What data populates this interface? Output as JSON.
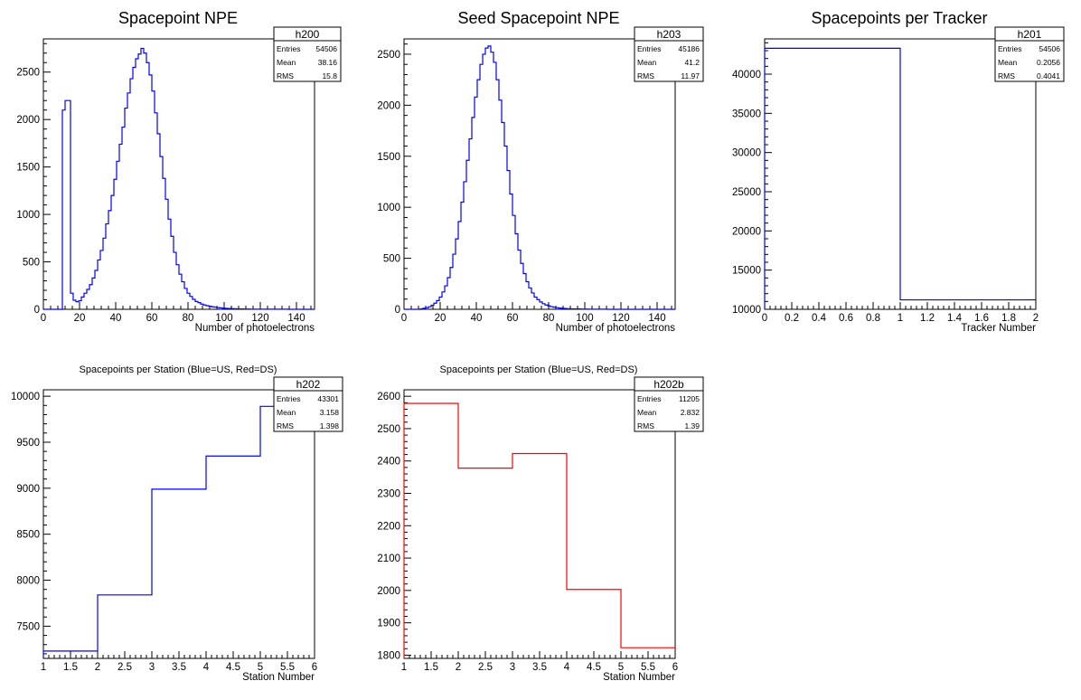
{
  "chart_data": [
    {
      "type": "histogram",
      "title": "Spacepoint NPE",
      "xlabel": "Number of photoelectrons",
      "ylabel": "",
      "xlim": [
        0,
        150
      ],
      "ylim": [
        0,
        2850
      ],
      "xticks": [
        0,
        20,
        40,
        60,
        80,
        100,
        120,
        140
      ],
      "yticks": [
        0,
        500,
        1000,
        1500,
        2000,
        2500
      ],
      "line_color": "#0000ff",
      "bin_edges_start": 0,
      "bin_width": 1.5,
      "values": [
        0,
        0,
        0,
        0,
        0,
        0,
        0,
        2100,
        2200,
        2200,
        170,
        95,
        80,
        90,
        130,
        170,
        210,
        260,
        330,
        410,
        520,
        620,
        750,
        900,
        1040,
        1200,
        1370,
        1560,
        1740,
        1920,
        2120,
        2280,
        2430,
        2550,
        2640,
        2690,
        2750,
        2700,
        2600,
        2470,
        2300,
        2070,
        1850,
        1610,
        1380,
        1160,
        950,
        770,
        600,
        470,
        370,
        290,
        220,
        170,
        135,
        105,
        82,
        70,
        55,
        45,
        38,
        32,
        26,
        22,
        18,
        15,
        12,
        10,
        8,
        7,
        6,
        5,
        4,
        4,
        3,
        3,
        2,
        2,
        2,
        1,
        1,
        1,
        1,
        1,
        1,
        1,
        1,
        1,
        1,
        1,
        0,
        0,
        0,
        0,
        0,
        0,
        0,
        0,
        0,
        0
      ],
      "stats": {
        "name": "h200",
        "entries": "54506",
        "mean": "38.16",
        "rms": "15.8"
      }
    },
    {
      "type": "histogram",
      "title": "Seed Spacepoint NPE",
      "xlabel": "Number of photoelectrons",
      "ylabel": "",
      "xlim": [
        0,
        150
      ],
      "ylim": [
        0,
        2650
      ],
      "xticks": [
        0,
        20,
        40,
        60,
        80,
        100,
        120,
        140
      ],
      "yticks": [
        0,
        500,
        1000,
        1500,
        2000,
        2500
      ],
      "line_color": "#0000ff",
      "bin_edges_start": 0,
      "bin_width": 1.5,
      "values": [
        0,
        0,
        0,
        0,
        0,
        0,
        5,
        10,
        15,
        25,
        40,
        60,
        85,
        120,
        170,
        230,
        310,
        410,
        540,
        690,
        860,
        1050,
        1250,
        1460,
        1670,
        1880,
        2080,
        2250,
        2400,
        2500,
        2560,
        2580,
        2520,
        2420,
        2250,
        2050,
        1830,
        1600,
        1360,
        1130,
        920,
        740,
        580,
        450,
        350,
        270,
        210,
        160,
        120,
        95,
        72,
        55,
        42,
        33,
        26,
        20,
        16,
        12,
        10,
        8,
        6,
        5,
        4,
        3,
        3,
        2,
        2,
        2,
        1,
        1,
        1,
        1,
        1,
        1,
        1,
        0,
        0,
        0,
        0,
        0,
        0,
        0,
        0,
        0,
        0,
        0,
        0,
        0,
        0,
        0,
        0,
        0,
        0,
        0,
        0,
        0,
        0,
        0,
        0,
        0
      ],
      "stats": {
        "name": "h203",
        "entries": "45186",
        "mean": "41.2",
        "rms": "11.97"
      }
    },
    {
      "type": "histogram",
      "title": "Spacepoints per Tracker",
      "xlabel": "Tracker Number",
      "ylabel": "",
      "xlim": [
        0,
        2
      ],
      "ylim": [
        10000,
        44500
      ],
      "xticks": [
        0,
        0.2,
        0.4,
        0.6,
        0.8,
        1,
        1.2,
        1.4,
        1.6,
        1.8,
        2
      ],
      "yticks": [
        10000,
        15000,
        20000,
        25000,
        30000,
        35000,
        40000
      ],
      "line_color": "#0000ff",
      "bin_edges_start": 0,
      "bin_width": 1,
      "values": [
        43301,
        11205
      ],
      "stats": {
        "name": "h201",
        "entries": "54506",
        "mean": "0.2056",
        "rms": "0.4041"
      }
    },
    {
      "type": "histogram",
      "title": "Spacepoints per Station (Blue=US, Red=DS)",
      "xlabel": "Station Number",
      "ylabel": "",
      "xlim": [
        1,
        6
      ],
      "ylim": [
        7150,
        10070
      ],
      "xticks": [
        1,
        1.5,
        2,
        2.5,
        3,
        3.5,
        4,
        4.5,
        5,
        5.5,
        6
      ],
      "yticks": [
        7500,
        8000,
        8500,
        9000,
        9500,
        10000
      ],
      "line_color": "#0000ff",
      "bin_edges_start": 1,
      "bin_width": 1,
      "values": [
        7230,
        7840,
        8990,
        9350,
        9890
      ],
      "stats": {
        "name": "h202",
        "entries": "43301",
        "mean": "3.158",
        "rms": "1.398"
      }
    },
    {
      "type": "histogram",
      "title": "Spacepoints per Station (Blue=US, Red=DS)",
      "xlabel": "Station Number",
      "ylabel": "",
      "xlim": [
        1,
        6
      ],
      "ylim": [
        1790,
        2620
      ],
      "xticks": [
        1,
        1.5,
        2,
        2.5,
        3,
        3.5,
        4,
        4.5,
        5,
        5.5,
        6
      ],
      "yticks": [
        1800,
        1900,
        2000,
        2100,
        2200,
        2300,
        2400,
        2500,
        2600
      ],
      "line_color": "#ff0000",
      "bin_edges_start": 1,
      "bin_width": 1,
      "values": [
        2578,
        2378,
        2423,
        2003,
        1823
      ],
      "stats": {
        "name": "h202b",
        "entries": "11205",
        "mean": "2.832",
        "rms": "1.39"
      }
    }
  ],
  "stats_labels": {
    "entries": "Entries",
    "mean": "Mean",
    "rms": "RMS"
  }
}
